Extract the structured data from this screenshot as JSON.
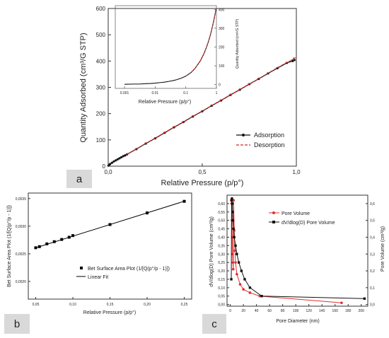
{
  "panel_labels": [
    "a",
    "b",
    "c"
  ],
  "chart_data": [
    {
      "panel": "a",
      "type": "line",
      "xlabel": "Relative Pressure (p/p°)",
      "ylabel": "Quantity Adsorbed (cm³/G STP)",
      "xlim": [
        0,
        1.0
      ],
      "ylim": [
        0,
        600
      ],
      "x_ticks": [
        "0,0",
        "0,5",
        "1,0"
      ],
      "y_ticks": [
        "0",
        "100",
        "200",
        "300",
        "400",
        "500",
        "600"
      ],
      "legend": {
        "placement": "bottom-right",
        "entries": [
          "Adsorption",
          "Desorption"
        ]
      },
      "series": [
        {
          "name": "Adsorption",
          "color": "#111111",
          "marker": "dot",
          "x": [
            0.001,
            0.005,
            0.01,
            0.02,
            0.03,
            0.04,
            0.05,
            0.06,
            0.07,
            0.08,
            0.09,
            0.1,
            0.15,
            0.2,
            0.25,
            0.3,
            0.35,
            0.4,
            0.45,
            0.5,
            0.55,
            0.6,
            0.65,
            0.7,
            0.75,
            0.8,
            0.85,
            0.9,
            0.95,
            0.98,
            0.99
          ],
          "y": [
            2,
            5,
            8,
            13,
            18,
            22,
            26,
            30,
            34,
            38,
            41,
            45,
            65,
            86,
            106,
            127,
            148,
            168,
            189,
            209,
            230,
            250,
            271,
            291,
            312,
            332,
            353,
            373,
            393,
            400,
            404
          ]
        },
        {
          "name": "Desorption",
          "color": "#cc2a2a",
          "marker": "dash",
          "x": [
            0.99,
            0.98,
            0.95,
            0.9,
            0.85,
            0.8,
            0.75,
            0.7,
            0.65,
            0.6,
            0.55,
            0.5,
            0.45,
            0.4,
            0.35,
            0.3,
            0.25,
            0.2,
            0.15,
            0.1
          ],
          "y": [
            412,
            405,
            395,
            375,
            354,
            333,
            313,
            292,
            272,
            251,
            231,
            210,
            190,
            169,
            149,
            128,
            107,
            87,
            66,
            46
          ]
        }
      ],
      "inset": {
        "type": "line",
        "xscale": "log",
        "xlabel": "Relative Pressure (p/p°)",
        "ylabel": "Quantity Adsorbed (cm³/G STP)",
        "xlim": [
          0.0005,
          1.0
        ],
        "ylim": [
          -20,
          420
        ],
        "x_ticks": [
          "0.001",
          "0.01",
          "0.1",
          "1"
        ],
        "y_ticks": [
          "0",
          "100",
          "200",
          "300",
          "400"
        ],
        "series": [
          {
            "name": "Adsorption",
            "color": "#111111",
            "x": [
              0.001,
              0.002,
              0.003,
              0.005,
              0.007,
              0.01,
              0.015,
              0.02,
              0.03,
              0.04,
              0.05,
              0.07,
              0.1,
              0.15,
              0.2,
              0.3,
              0.4,
              0.5,
              0.6,
              0.7,
              0.8,
              0.9,
              0.95,
              0.98,
              0.99
            ],
            "y": [
              2,
              3,
              3,
              5,
              6,
              8,
              11,
              13,
              18,
              22,
              26,
              34,
              45,
              65,
              86,
              127,
              168,
              209,
              250,
              291,
              332,
              373,
              393,
              400,
              404
            ]
          },
          {
            "name": "Desorption",
            "color": "#cc2a2a",
            "x": [
              0.1,
              0.15,
              0.2,
              0.3,
              0.4,
              0.5,
              0.6,
              0.7,
              0.8,
              0.9,
              0.95,
              0.98,
              0.99
            ],
            "y": [
              46,
              66,
              87,
              128,
              169,
              210,
              251,
              292,
              333,
              375,
              395,
              405,
              412
            ]
          }
        ]
      }
    },
    {
      "panel": "b",
      "type": "scatter",
      "xlabel": "Relative Pressure (p/p°)",
      "ylabel": "Bet Surface Area Plot (1/[Q(p°/p - 1)])",
      "xlim": [
        0.04,
        0.26
      ],
      "ylim": [
        0.00168,
        0.0036
      ],
      "x_ticks": [
        "0,05",
        "0,10",
        "0,15",
        "0,20",
        "0,25"
      ],
      "y_ticks": [
        "0,0020",
        "0,0025",
        "0,0030",
        "0,0035"
      ],
      "legend": {
        "placement": "bottom-right",
        "entries": [
          "Bet Surface Area Plot (1/[Q(p°/p - 1)])",
          "Linear Fit"
        ]
      },
      "series": [
        {
          "name": "Bet Surface Area Plot (1/[Q(p°/p - 1)])",
          "color": "#000000",
          "x": [
            0.05,
            0.055,
            0.065,
            0.075,
            0.085,
            0.095,
            0.1,
            0.15,
            0.2,
            0.25
          ],
          "y": [
            0.00261,
            0.00263,
            0.00268,
            0.00272,
            0.00276,
            0.0028,
            0.00283,
            0.00303,
            0.00324,
            0.00345
          ]
        },
        {
          "name": "Linear Fit",
          "color": "#000000",
          "x": [
            0.048,
            0.252
          ],
          "y": [
            0.0026,
            0.00346
          ]
        }
      ]
    },
    {
      "panel": "c",
      "type": "line",
      "xlabel": "Pore Diameter (nm)",
      "ylabel": "dV/dlog(D) Pore Volume (cm³/g)",
      "y2label": "Pore Volume (cm³/g)",
      "xlim": [
        -5,
        210
      ],
      "ylim": [
        -0.01,
        0.65
      ],
      "x_ticks": [
        "0",
        "20",
        "40",
        "60",
        "80",
        "100",
        "120",
        "140",
        "160",
        "180",
        "200"
      ],
      "y_ticks": [
        "0,00",
        "0,05",
        "0,10",
        "0,15",
        "0,20",
        "0,25",
        "0,30",
        "0,35",
        "0,40",
        "0,45",
        "0,50",
        "0,55",
        "0,60"
      ],
      "y2_ticks": [
        "0,0",
        "0,1",
        "0,2",
        "0,3",
        "0,4",
        "0,5",
        "0,6"
      ],
      "legend": {
        "placement": "top-right",
        "entries": [
          "Pore Volume",
          "dV/dlog(D) Pore Volume"
        ]
      },
      "series": [
        {
          "name": "Pore Volume",
          "color": "#e03030",
          "marker": "circle",
          "x": [
            1.5,
            2,
            2.5,
            3,
            3.5,
            4,
            4.5,
            5,
            6,
            7,
            8,
            10,
            15,
            20,
            30,
            45,
            170
          ],
          "y": [
            0.62,
            0.6,
            0.5,
            0.4,
            0.3,
            0.25,
            0.21,
            0.62,
            0.44,
            0.32,
            0.25,
            0.18,
            0.12,
            0.09,
            0.07,
            0.05,
            0.01
          ]
        },
        {
          "name": "dV/dlog(D) Pore Volume",
          "color": "#111111",
          "marker": "square",
          "x": [
            1.5,
            2,
            2.5,
            3,
            3.5,
            4,
            5,
            6,
            8,
            10,
            13,
            17,
            22,
            30,
            48,
            205
          ],
          "y": [
            0.15,
            0.62,
            0.63,
            0.6,
            0.55,
            0.5,
            0.45,
            0.4,
            0.35,
            0.3,
            0.25,
            0.2,
            0.15,
            0.1,
            0.05,
            0.035
          ]
        }
      ]
    }
  ]
}
